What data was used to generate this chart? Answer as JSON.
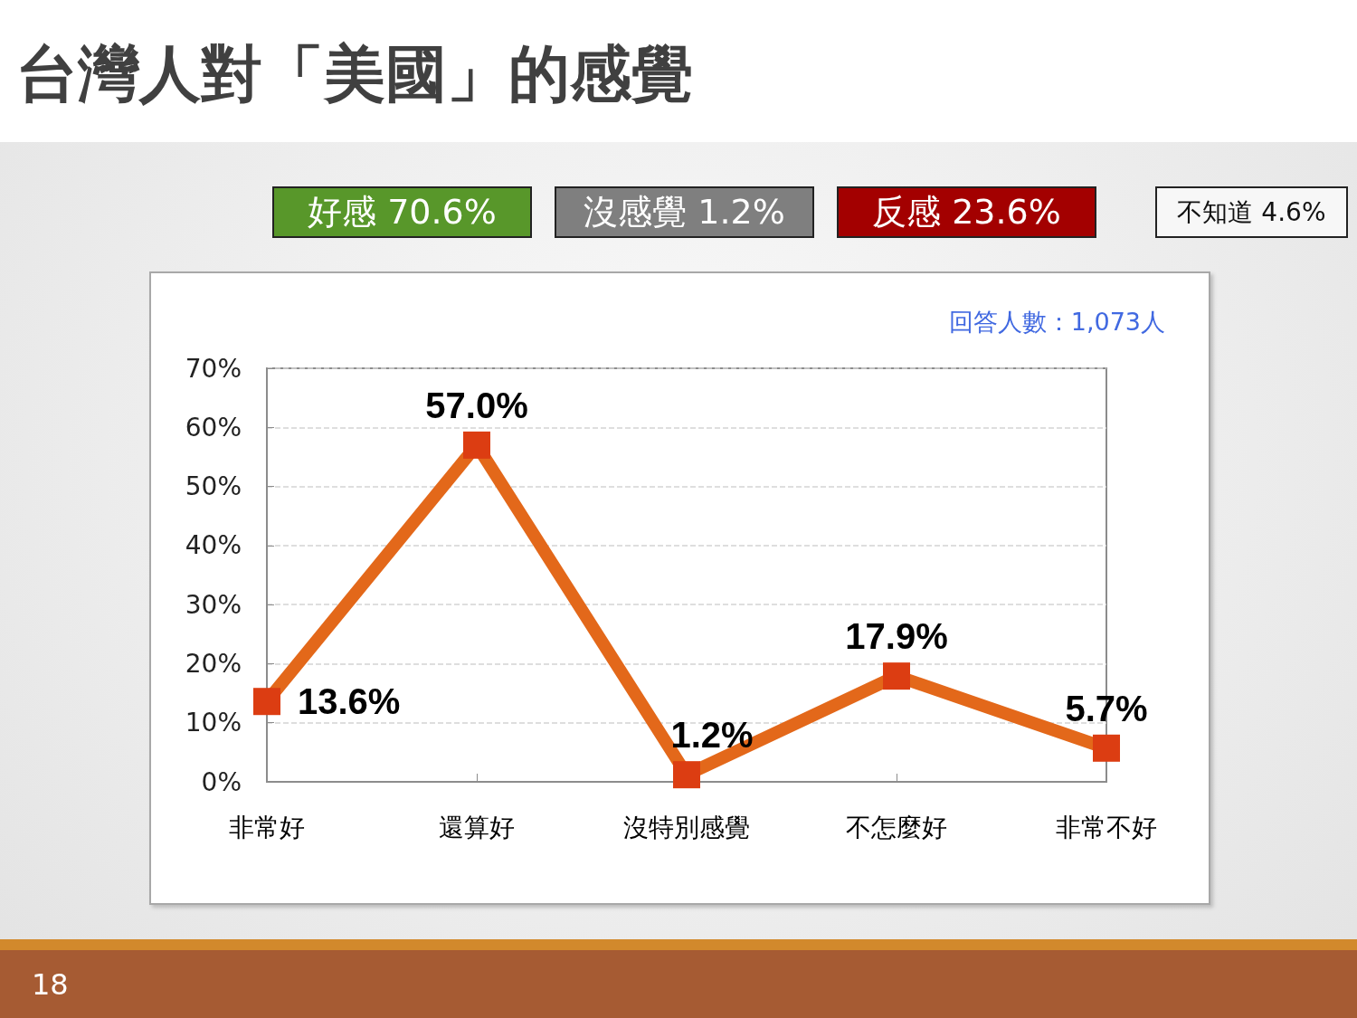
{
  "chart_data": {
    "type": "line",
    "title": "台灣人對「美國」的感覺",
    "annotations": [
      "好感 70.6%",
      "沒感覺 1.2%",
      "反感 23.6%",
      "不知道 4.6%",
      "回答人數：1,073人",
      "18"
    ],
    "categories": [
      "非常好",
      "還算好",
      "沒特別感覺",
      "不怎麼好",
      "非常不好"
    ],
    "series": [
      {
        "color": "#e3681a",
        "colors": [
          "#dc3d12",
          "#dc3d12",
          "#dc3d12",
          "#dc3d12",
          "#dc3d12"
        ],
        "values": [
          13.6,
          57.0,
          1.2,
          17.9,
          5.7
        ],
        "value_labels": [
          "13.6%",
          "57.0%",
          "1.2%",
          "17.9%",
          "5.7%"
        ]
      }
    ],
    "ylim": [
      0,
      70
    ],
    "yticks": [
      {
        "value": 0,
        "label": "0%"
      },
      {
        "value": 10,
        "label": "10%"
      },
      {
        "value": 20,
        "label": "20%"
      },
      {
        "value": 30,
        "label": "30%"
      },
      {
        "value": 40,
        "label": "40%"
      },
      {
        "value": 50,
        "label": "50%"
      },
      {
        "value": 60,
        "label": "60%"
      },
      {
        "value": 70,
        "label": "70%"
      }
    ],
    "grid": "y",
    "marker": "square",
    "line_style": "solid"
  }
}
